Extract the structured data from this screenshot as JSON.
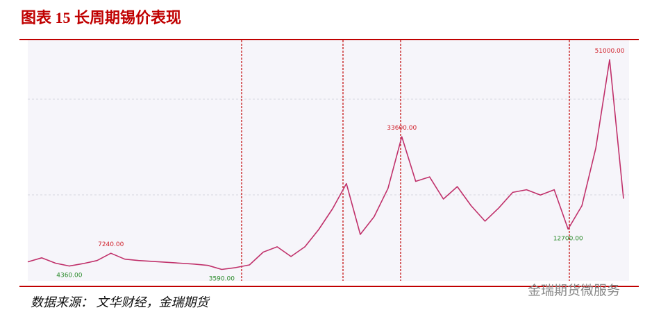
{
  "title": "图表 15 长周期锡价表现",
  "source": "数据来源：  文华财经，金瑞期货",
  "watermark": "金瑞期货微服务",
  "chart_data": {
    "type": "line",
    "values": [
      5300,
      6200,
      5000,
      4360,
      4900,
      5600,
      7240,
      5900,
      5600,
      5400,
      5200,
      5000,
      4800,
      4500,
      3590,
      4000,
      4600,
      7500,
      8700,
      6500,
      8700,
      12600,
      17300,
      23000,
      11500,
      15500,
      21900,
      33600,
      23500,
      24500,
      19500,
      22300,
      18000,
      14500,
      17500,
      21000,
      21600,
      20400,
      21600,
      12700,
      18000,
      31000,
      51000,
      19600
    ],
    "value_labels": [
      null,
      null,
      null,
      "4360.00",
      null,
      null,
      "7240.00",
      null,
      null,
      null,
      null,
      null,
      null,
      null,
      "3590.00",
      null,
      null,
      null,
      null,
      null,
      null,
      null,
      null,
      null,
      null,
      null,
      null,
      "33600.00",
      null,
      null,
      null,
      null,
      null,
      null,
      null,
      null,
      null,
      null,
      null,
      "12700.00",
      null,
      null,
      "51000.00",
      null
    ],
    "color": "#c0306a",
    "ylim": [
      1000,
      55400
    ]
  }
}
